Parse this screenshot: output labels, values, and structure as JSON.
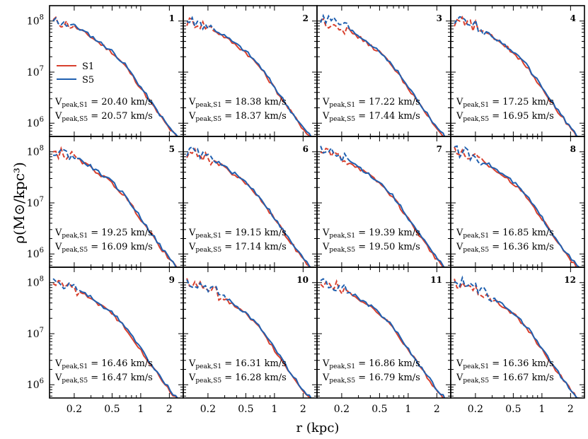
{
  "chart_data": {
    "type": "line",
    "grid": false,
    "xlabel": "r (kpc)",
    "ylabel": "ρ(M⊙/kpc³)",
    "xscale": "log",
    "yscale": "log",
    "xlim": [
      0.11,
      2.8
    ],
    "ylim": [
      550000,
      200000000
    ],
    "xticks": [
      0.2,
      0.5,
      1,
      2
    ],
    "xtick_labels": [
      "0.2",
      "0.5",
      "1",
      "2"
    ],
    "yticks": [
      1000000,
      10000000,
      100000000
    ],
    "ytick_labels": [
      {
        "base": "10",
        "exp": "6"
      },
      {
        "base": "10",
        "exp": "7"
      },
      {
        "base": "10",
        "exp": "8"
      }
    ],
    "legend": {
      "location": "panel-1 left",
      "entries": [
        {
          "label": "S1",
          "color": "#d8402e"
        },
        {
          "label": "S5",
          "color": "#2060b0"
        }
      ]
    },
    "series_style": "dashed inside convergence radius, solid outside",
    "panels": [
      {
        "id": "1",
        "vpeak_S1": "20.40",
        "vpeak_S5": "20.57",
        "rconv": 0.2
      },
      {
        "id": "2",
        "vpeak_S1": "18.38",
        "vpeak_S5": "18.37",
        "rconv": 0.22
      },
      {
        "id": "3",
        "vpeak_S1": "17.22",
        "vpeak_S5": "17.44",
        "rconv": 0.24
      },
      {
        "id": "4",
        "vpeak_S1": "17.25",
        "vpeak_S5": "16.95",
        "rconv": 0.26
      },
      {
        "id": "5",
        "vpeak_S1": "19.25",
        "vpeak_S5": "16.09",
        "rconv": 0.21
      },
      {
        "id": "6",
        "vpeak_S1": "19.15",
        "vpeak_S5": "17.14",
        "rconv": 0.22
      },
      {
        "id": "7",
        "vpeak_S1": "19.39",
        "vpeak_S5": "19.50",
        "rconv": 0.23
      },
      {
        "id": "8",
        "vpeak_S1": "16.85",
        "vpeak_S5": "16.36",
        "rconv": 0.23
      },
      {
        "id": "9",
        "vpeak_S1": "16.46",
        "vpeak_S5": "16.47",
        "rconv": 0.22
      },
      {
        "id": "10",
        "vpeak_S1": "16.31",
        "vpeak_S5": "16.28",
        "rconv": 0.3
      },
      {
        "id": "11",
        "vpeak_S1": "16.86",
        "vpeak_S5": "16.79",
        "rconv": 0.26
      },
      {
        "id": "12",
        "vpeak_S1": "16.36",
        "vpeak_S5": "16.67",
        "rconv": 0.3
      }
    ],
    "vpeak_label_S1": "V_peak,S1",
    "vpeak_label_S5": "V_peak,S5",
    "vpeak_unit": "km/s",
    "profile_template": {
      "x": [
        0.12,
        0.15,
        0.2,
        0.3,
        0.5,
        0.7,
        1.0,
        1.4,
        2.0,
        2.5
      ],
      "y": [
        100000000,
        95000000,
        80000000,
        50000000,
        25000000,
        13000000,
        5000000,
        2000000,
        800000,
        500000
      ]
    }
  }
}
